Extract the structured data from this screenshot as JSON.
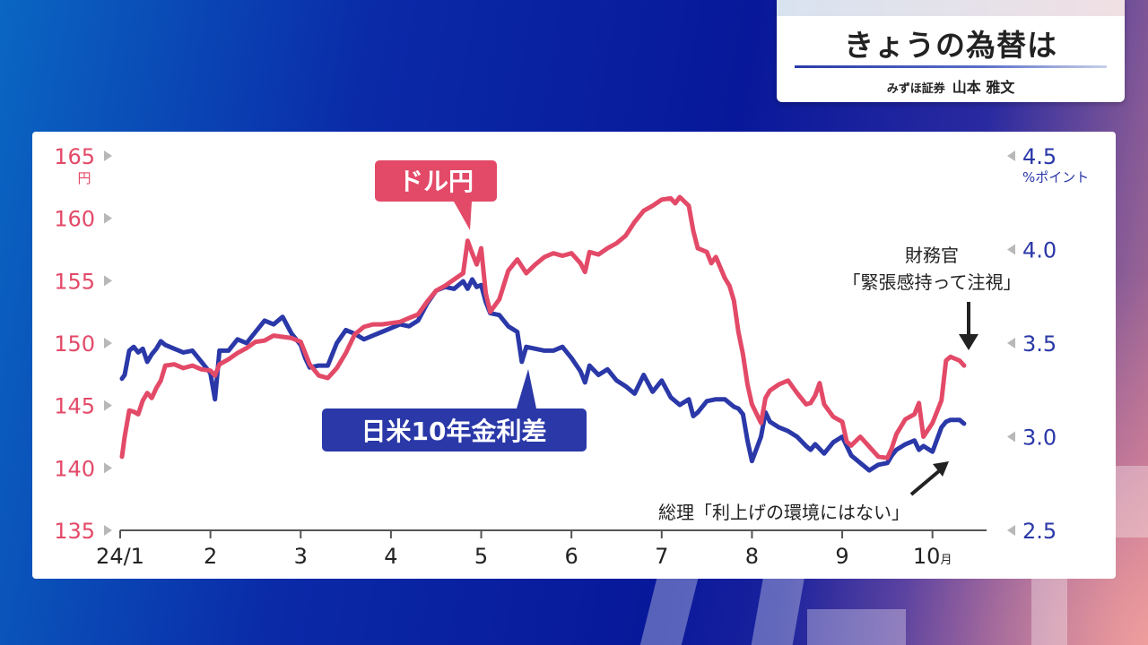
{
  "panel": {
    "title": "きょうの為替は",
    "company": "みずほ証券",
    "person": "山本 雅文"
  },
  "colors": {
    "usdjpy": "#e34a68",
    "spread": "#2a38a8",
    "axis": "#555555",
    "text": "#222222"
  },
  "chart_data": {
    "type": "line",
    "x_axis": {
      "unit": "月",
      "ticks": [
        {
          "label": "24/1",
          "x": 1.0
        },
        {
          "label": "2",
          "x": 2.0
        },
        {
          "label": "3",
          "x": 3.0
        },
        {
          "label": "4",
          "x": 4.0
        },
        {
          "label": "5",
          "x": 5.0
        },
        {
          "label": "6",
          "x": 6.0
        },
        {
          "label": "7",
          "x": 7.0
        },
        {
          "label": "8",
          "x": 8.0
        },
        {
          "label": "9",
          "x": 9.0
        },
        {
          "label": "10",
          "x": 10.0
        }
      ],
      "xlim": [
        1.0,
        10.5
      ]
    },
    "left_axis": {
      "unit": "円",
      "ylim": [
        135,
        165
      ],
      "ticks": [
        135,
        140,
        145,
        150,
        155,
        160,
        165
      ]
    },
    "right_axis": {
      "unit": "%ポイント",
      "ylim": [
        2.5,
        4.5
      ],
      "ticks": [
        2.5,
        3.0,
        3.5,
        4.0,
        4.5
      ]
    },
    "series": [
      {
        "name": "ドル円",
        "axis": "left",
        "points": [
          [
            1.02,
            140.9
          ],
          [
            1.05,
            142.5
          ],
          [
            1.1,
            144.6
          ],
          [
            1.15,
            144.5
          ],
          [
            1.2,
            144.3
          ],
          [
            1.25,
            145.4
          ],
          [
            1.3,
            146.0
          ],
          [
            1.35,
            145.6
          ],
          [
            1.4,
            146.4
          ],
          [
            1.45,
            147.0
          ],
          [
            1.5,
            148.2
          ],
          [
            1.6,
            148.3
          ],
          [
            1.7,
            148.0
          ],
          [
            1.8,
            148.2
          ],
          [
            1.9,
            147.9
          ],
          [
            2.0,
            147.8
          ],
          [
            2.05,
            147.4
          ],
          [
            2.1,
            148.3
          ],
          [
            2.2,
            148.7
          ],
          [
            2.3,
            149.2
          ],
          [
            2.4,
            149.6
          ],
          [
            2.5,
            150.1
          ],
          [
            2.6,
            150.2
          ],
          [
            2.7,
            150.6
          ],
          [
            2.8,
            150.5
          ],
          [
            2.9,
            150.4
          ],
          [
            3.0,
            150.1
          ],
          [
            3.05,
            149.2
          ],
          [
            3.1,
            148.3
          ],
          [
            3.2,
            147.4
          ],
          [
            3.3,
            147.2
          ],
          [
            3.4,
            148.0
          ],
          [
            3.5,
            149.2
          ],
          [
            3.6,
            150.7
          ],
          [
            3.7,
            151.3
          ],
          [
            3.8,
            151.5
          ],
          [
            3.9,
            151.5
          ],
          [
            4.0,
            151.6
          ],
          [
            4.1,
            151.7
          ],
          [
            4.2,
            152.0
          ],
          [
            4.3,
            152.3
          ],
          [
            4.4,
            153.3
          ],
          [
            4.5,
            154.2
          ],
          [
            4.6,
            154.6
          ],
          [
            4.7,
            155.1
          ],
          [
            4.8,
            155.6
          ],
          [
            4.85,
            158.2
          ],
          [
            4.9,
            157.2
          ],
          [
            4.95,
            156.3
          ],
          [
            5.0,
            157.6
          ],
          [
            5.05,
            154.0
          ],
          [
            5.1,
            152.5
          ],
          [
            5.2,
            153.5
          ],
          [
            5.3,
            155.8
          ],
          [
            5.4,
            156.7
          ],
          [
            5.5,
            155.6
          ],
          [
            5.6,
            156.3
          ],
          [
            5.7,
            156.9
          ],
          [
            5.8,
            157.2
          ],
          [
            5.9,
            157.0
          ],
          [
            6.0,
            157.2
          ],
          [
            6.1,
            156.4
          ],
          [
            6.15,
            155.7
          ],
          [
            6.2,
            157.3
          ],
          [
            6.3,
            157.1
          ],
          [
            6.4,
            157.6
          ],
          [
            6.5,
            158.0
          ],
          [
            6.6,
            158.6
          ],
          [
            6.7,
            159.7
          ],
          [
            6.8,
            160.6
          ],
          [
            6.9,
            161.0
          ],
          [
            7.0,
            161.5
          ],
          [
            7.1,
            161.6
          ],
          [
            7.15,
            161.2
          ],
          [
            7.2,
            161.7
          ],
          [
            7.3,
            161.0
          ],
          [
            7.35,
            159.0
          ],
          [
            7.4,
            157.6
          ],
          [
            7.5,
            157.3
          ],
          [
            7.55,
            156.4
          ],
          [
            7.6,
            156.9
          ],
          [
            7.7,
            155.2
          ],
          [
            7.75,
            154.6
          ],
          [
            7.8,
            153.4
          ],
          [
            7.85,
            150.9
          ],
          [
            7.9,
            149.1
          ],
          [
            7.95,
            146.7
          ],
          [
            8.0,
            145.1
          ],
          [
            8.1,
            143.6
          ],
          [
            8.15,
            145.6
          ],
          [
            8.2,
            146.2
          ],
          [
            8.3,
            146.7
          ],
          [
            8.4,
            147.0
          ],
          [
            8.5,
            146.0
          ],
          [
            8.6,
            145.1
          ],
          [
            8.65,
            145.2
          ],
          [
            8.7,
            145.8
          ],
          [
            8.75,
            146.8
          ],
          [
            8.8,
            145.1
          ],
          [
            8.9,
            144.1
          ],
          [
            9.0,
            143.7
          ],
          [
            9.05,
            142.1
          ],
          [
            9.1,
            141.8
          ],
          [
            9.2,
            142.5
          ],
          [
            9.3,
            141.7
          ],
          [
            9.4,
            140.9
          ],
          [
            9.5,
            140.8
          ],
          [
            9.55,
            141.6
          ],
          [
            9.6,
            142.7
          ],
          [
            9.7,
            143.9
          ],
          [
            9.8,
            144.3
          ],
          [
            9.85,
            145.2
          ],
          [
            9.9,
            142.5
          ],
          [
            10.0,
            143.6
          ],
          [
            10.1,
            145.4
          ],
          [
            10.15,
            148.6
          ],
          [
            10.2,
            148.9
          ],
          [
            10.3,
            148.6
          ],
          [
            10.35,
            148.2
          ]
        ]
      },
      {
        "name": "日米10年金利差",
        "axis": "right",
        "points": [
          [
            1.02,
            3.31
          ],
          [
            1.05,
            3.33
          ],
          [
            1.1,
            3.46
          ],
          [
            1.15,
            3.48
          ],
          [
            1.2,
            3.45
          ],
          [
            1.25,
            3.47
          ],
          [
            1.3,
            3.4
          ],
          [
            1.35,
            3.44
          ],
          [
            1.4,
            3.47
          ],
          [
            1.45,
            3.51
          ],
          [
            1.5,
            3.49
          ],
          [
            1.6,
            3.47
          ],
          [
            1.7,
            3.45
          ],
          [
            1.8,
            3.46
          ],
          [
            1.9,
            3.4
          ],
          [
            2.0,
            3.34
          ],
          [
            2.05,
            3.2
          ],
          [
            2.1,
            3.46
          ],
          [
            2.2,
            3.46
          ],
          [
            2.3,
            3.52
          ],
          [
            2.4,
            3.5
          ],
          [
            2.5,
            3.56
          ],
          [
            2.6,
            3.62
          ],
          [
            2.7,
            3.6
          ],
          [
            2.8,
            3.64
          ],
          [
            2.9,
            3.55
          ],
          [
            3.0,
            3.49
          ],
          [
            3.05,
            3.42
          ],
          [
            3.1,
            3.37
          ],
          [
            3.2,
            3.38
          ],
          [
            3.3,
            3.38
          ],
          [
            3.4,
            3.5
          ],
          [
            3.5,
            3.57
          ],
          [
            3.6,
            3.55
          ],
          [
            3.7,
            3.52
          ],
          [
            3.8,
            3.54
          ],
          [
            3.9,
            3.56
          ],
          [
            4.0,
            3.58
          ],
          [
            4.1,
            3.6
          ],
          [
            4.2,
            3.59
          ],
          [
            4.3,
            3.62
          ],
          [
            4.4,
            3.71
          ],
          [
            4.5,
            3.78
          ],
          [
            4.6,
            3.8
          ],
          [
            4.7,
            3.79
          ],
          [
            4.8,
            3.83
          ],
          [
            4.85,
            3.79
          ],
          [
            4.9,
            3.84
          ],
          [
            4.95,
            3.8
          ],
          [
            5.0,
            3.81
          ],
          [
            5.05,
            3.72
          ],
          [
            5.1,
            3.66
          ],
          [
            5.2,
            3.65
          ],
          [
            5.3,
            3.59
          ],
          [
            5.4,
            3.56
          ],
          [
            5.45,
            3.4
          ],
          [
            5.5,
            3.48
          ],
          [
            5.6,
            3.47
          ],
          [
            5.7,
            3.46
          ],
          [
            5.8,
            3.46
          ],
          [
            5.9,
            3.48
          ],
          [
            6.0,
            3.42
          ],
          [
            6.1,
            3.35
          ],
          [
            6.15,
            3.29
          ],
          [
            6.2,
            3.38
          ],
          [
            6.3,
            3.33
          ],
          [
            6.4,
            3.36
          ],
          [
            6.5,
            3.3
          ],
          [
            6.6,
            3.27
          ],
          [
            6.7,
            3.23
          ],
          [
            6.8,
            3.33
          ],
          [
            6.9,
            3.24
          ],
          [
            7.0,
            3.3
          ],
          [
            7.1,
            3.21
          ],
          [
            7.2,
            3.17
          ],
          [
            7.3,
            3.2
          ],
          [
            7.35,
            3.11
          ],
          [
            7.4,
            3.13
          ],
          [
            7.5,
            3.19
          ],
          [
            7.6,
            3.2
          ],
          [
            7.7,
            3.2
          ],
          [
            7.8,
            3.16
          ],
          [
            7.85,
            3.15
          ],
          [
            7.9,
            3.12
          ],
          [
            7.95,
            2.98
          ],
          [
            8.0,
            2.87
          ],
          [
            8.1,
            3.0
          ],
          [
            8.15,
            3.13
          ],
          [
            8.2,
            3.08
          ],
          [
            8.3,
            3.05
          ],
          [
            8.4,
            3.03
          ],
          [
            8.5,
            3.0
          ],
          [
            8.6,
            2.95
          ],
          [
            8.65,
            2.93
          ],
          [
            8.7,
            2.96
          ],
          [
            8.8,
            2.91
          ],
          [
            8.9,
            2.97
          ],
          [
            9.0,
            3.0
          ],
          [
            9.05,
            2.95
          ],
          [
            9.1,
            2.9
          ],
          [
            9.2,
            2.86
          ],
          [
            9.3,
            2.82
          ],
          [
            9.4,
            2.85
          ],
          [
            9.5,
            2.86
          ],
          [
            9.55,
            2.9
          ],
          [
            9.6,
            2.93
          ],
          [
            9.7,
            2.96
          ],
          [
            9.8,
            2.98
          ],
          [
            9.85,
            2.93
          ],
          [
            9.9,
            2.95
          ],
          [
            10.0,
            2.92
          ],
          [
            10.1,
            3.05
          ],
          [
            10.15,
            3.08
          ],
          [
            10.2,
            3.09
          ],
          [
            10.3,
            3.09
          ],
          [
            10.35,
            3.07
          ]
        ]
      }
    ],
    "labels": {
      "usdjpy": "ドル円",
      "spread": "日米10年金利差"
    },
    "annotations": [
      {
        "id": "fx-official",
        "lines": [
          "財務官",
          "「緊張感持って注視」"
        ]
      },
      {
        "id": "pm",
        "lines": [
          "総理「利上げの環境にはない」"
        ]
      }
    ],
    "grid": false
  }
}
